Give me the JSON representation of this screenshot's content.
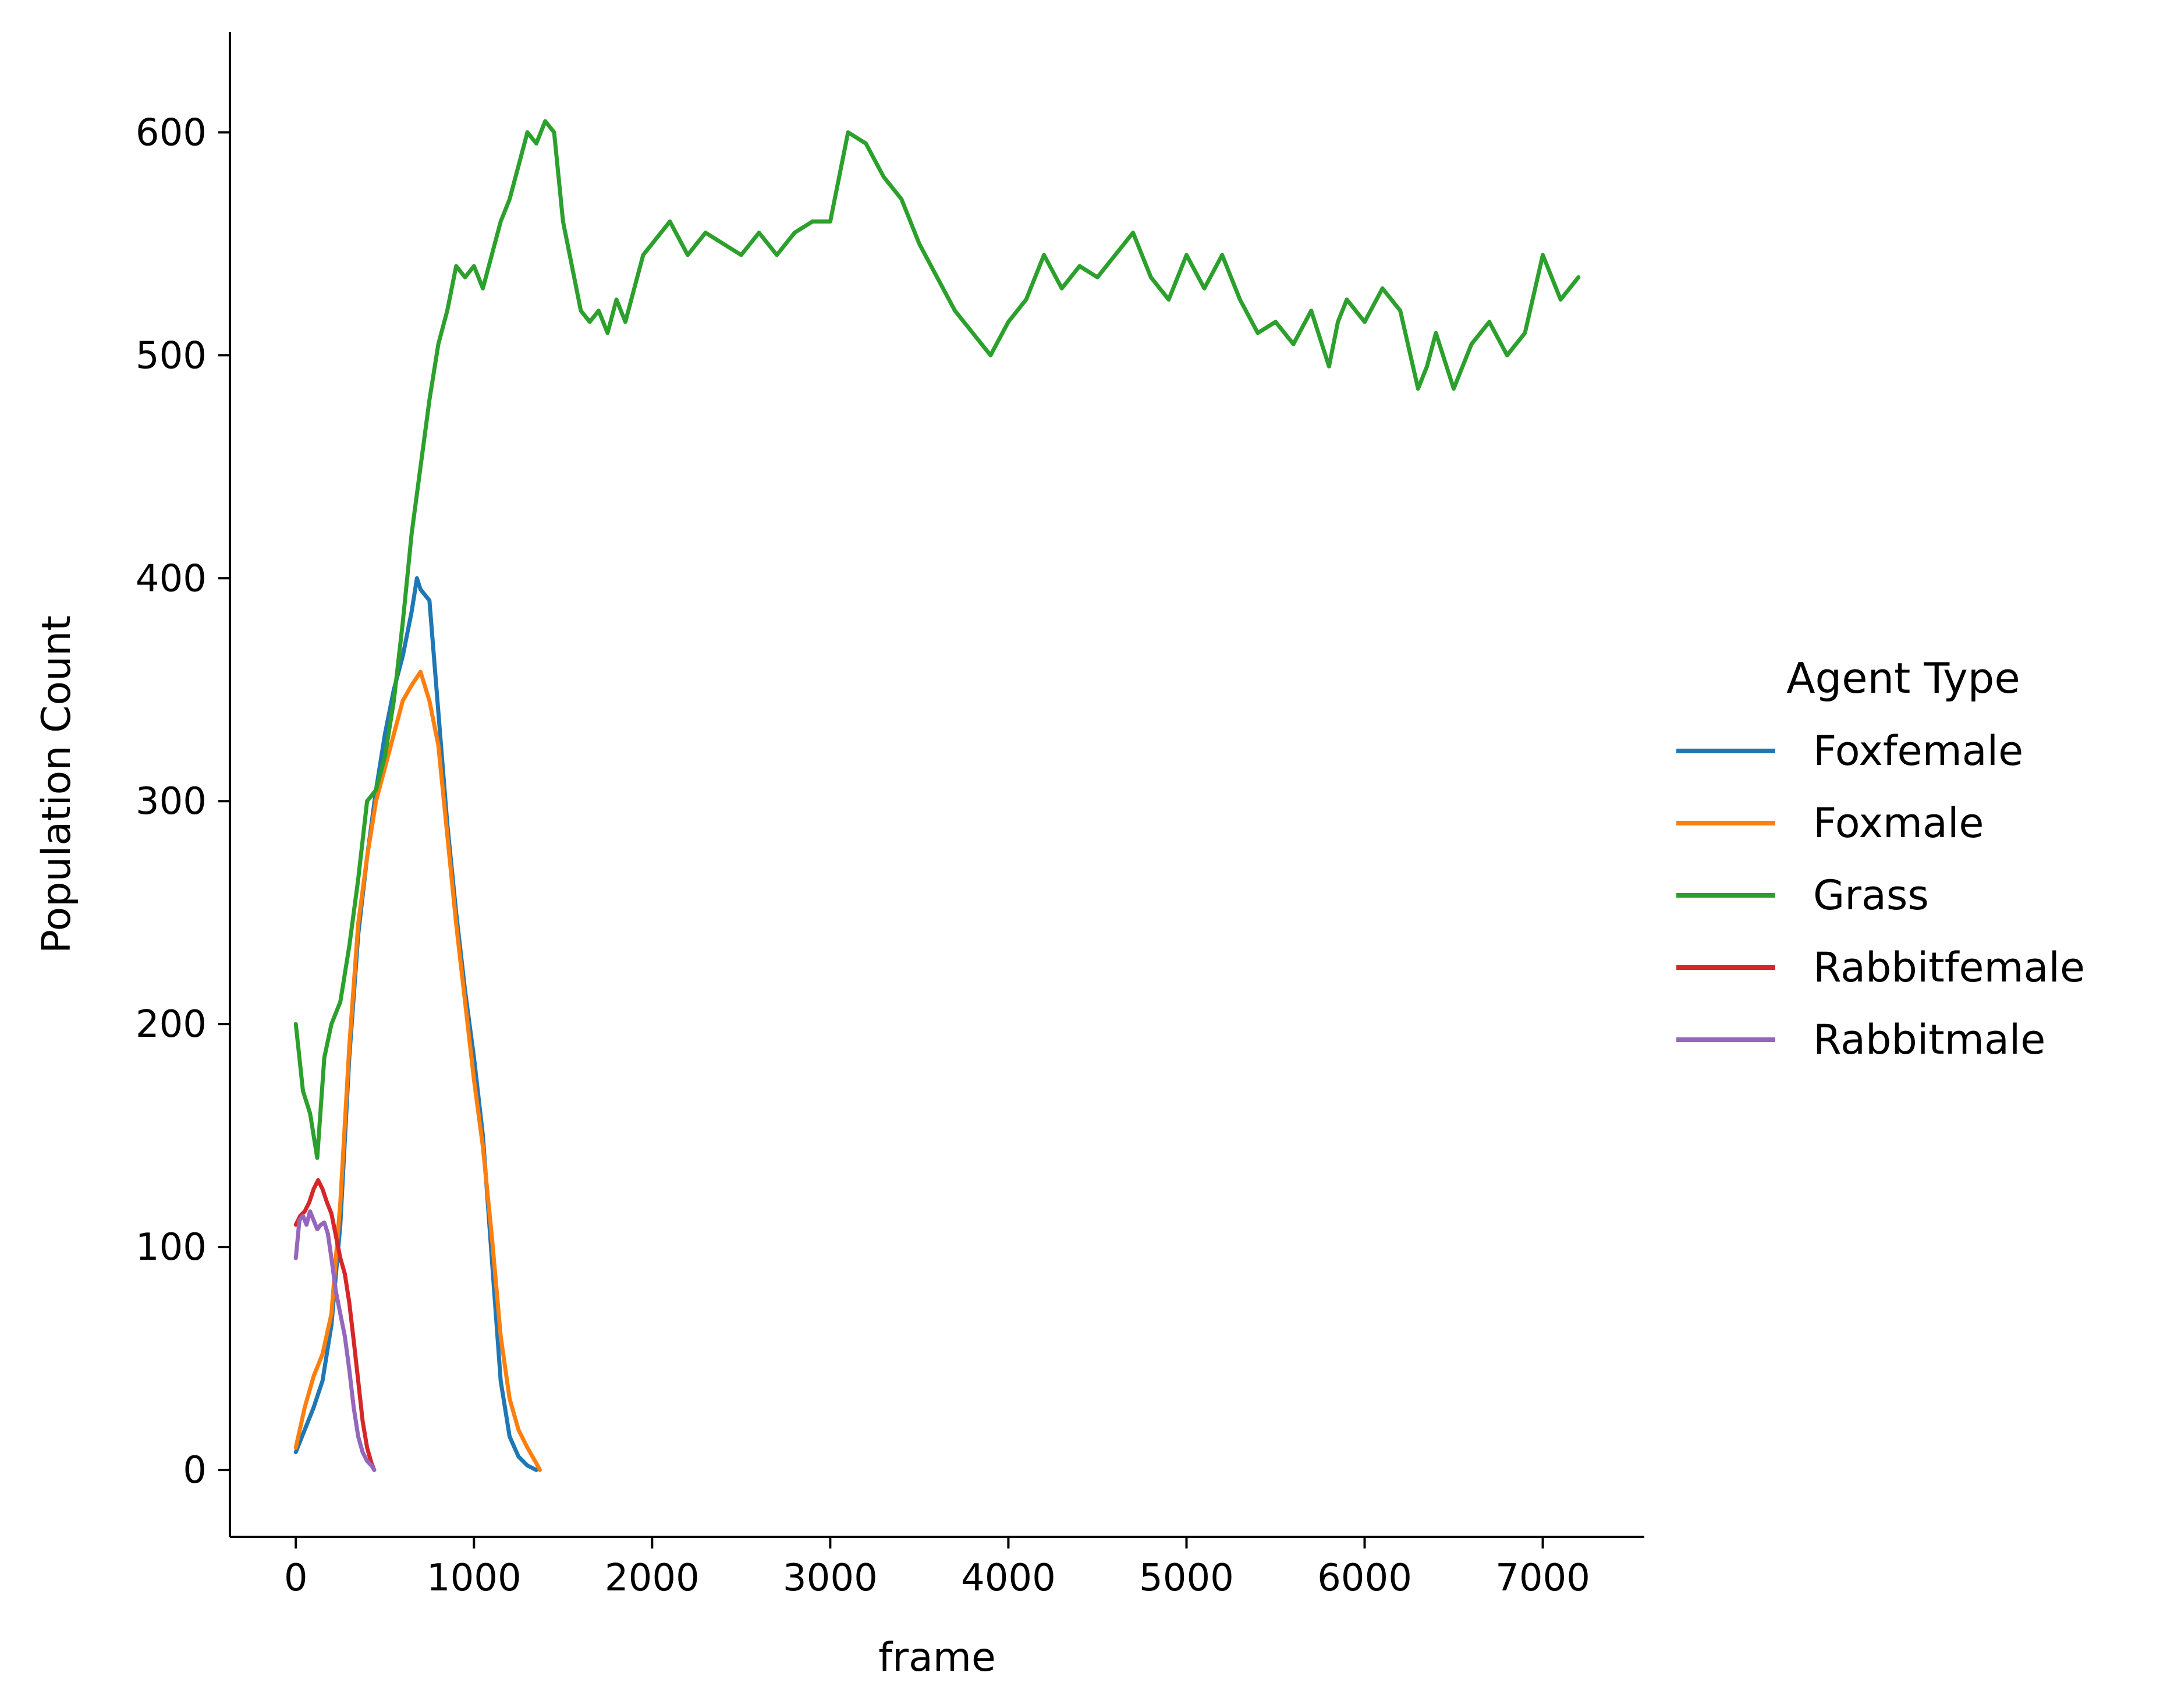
{
  "chart_data": {
    "type": "line",
    "xlabel": "frame",
    "ylabel": "Population Count",
    "xlim": [
      -370,
      7570
    ],
    "ylim": [
      -30,
      645
    ],
    "xticks": [
      0,
      1000,
      2000,
      3000,
      4000,
      5000,
      6000,
      7000
    ],
    "yticks": [
      0,
      100,
      200,
      300,
      400,
      500,
      600
    ],
    "grid": false,
    "legend": {
      "title": "Agent Type",
      "placement": "right"
    },
    "series": [
      {
        "name": "Foxfemale",
        "color": "#1f77b4",
        "x": [
          0,
          50,
          100,
          150,
          200,
          250,
          300,
          350,
          400,
          450,
          500,
          550,
          600,
          650,
          680,
          700,
          750,
          800,
          850,
          900,
          950,
          1000,
          1050,
          1100,
          1150,
          1200,
          1250,
          1300,
          1350
        ],
        "y": [
          8,
          18,
          28,
          40,
          65,
          110,
          185,
          240,
          275,
          305,
          330,
          350,
          365,
          385,
          400,
          395,
          390,
          340,
          290,
          250,
          215,
          185,
          150,
          95,
          40,
          15,
          6,
          2,
          0
        ]
      },
      {
        "name": "Foxmale",
        "color": "#ff7f0e",
        "x": [
          0,
          50,
          100,
          150,
          200,
          250,
          300,
          350,
          400,
          450,
          500,
          550,
          600,
          650,
          700,
          750,
          800,
          850,
          900,
          950,
          1000,
          1050,
          1100,
          1150,
          1200,
          1250,
          1300,
          1350,
          1370
        ],
        "y": [
          10,
          28,
          42,
          52,
          70,
          120,
          190,
          245,
          275,
          300,
          315,
          330,
          345,
          352,
          358,
          345,
          325,
          285,
          245,
          210,
          175,
          145,
          105,
          60,
          32,
          18,
          10,
          3,
          0
        ]
      },
      {
        "name": "Grass",
        "color": "#2ca02c",
        "x": [
          0,
          40,
          80,
          120,
          160,
          200,
          250,
          300,
          350,
          400,
          450,
          500,
          550,
          600,
          650,
          700,
          750,
          800,
          850,
          900,
          950,
          1000,
          1050,
          1100,
          1150,
          1200,
          1250,
          1300,
          1350,
          1400,
          1450,
          1500,
          1550,
          1600,
          1650,
          1700,
          1750,
          1800,
          1850,
          1900,
          1950,
          2000,
          2100,
          2200,
          2300,
          2400,
          2500,
          2600,
          2700,
          2800,
          2900,
          3000,
          3100,
          3200,
          3300,
          3400,
          3500,
          3600,
          3700,
          3800,
          3900,
          4000,
          4100,
          4200,
          4300,
          4400,
          4500,
          4600,
          4700,
          4800,
          4900,
          5000,
          5100,
          5200,
          5300,
          5400,
          5500,
          5600,
          5700,
          5800,
          5850,
          5900,
          6000,
          6100,
          6200,
          6300,
          6350,
          6400,
          6500,
          6600,
          6700,
          6800,
          6900,
          7000,
          7100,
          7200
        ],
        "y": [
          200,
          170,
          160,
          140,
          185,
          200,
          210,
          235,
          265,
          300,
          305,
          320,
          345,
          380,
          420,
          450,
          480,
          505,
          520,
          540,
          535,
          540,
          530,
          545,
          560,
          570,
          585,
          600,
          595,
          605,
          600,
          560,
          540,
          520,
          515,
          520,
          510,
          525,
          515,
          530,
          545,
          550,
          560,
          545,
          555,
          550,
          545,
          555,
          545,
          555,
          560,
          560,
          600,
          595,
          580,
          570,
          550,
          535,
          520,
          510,
          500,
          515,
          525,
          545,
          530,
          540,
          535,
          545,
          555,
          535,
          525,
          545,
          530,
          545,
          525,
          510,
          515,
          505,
          520,
          495,
          515,
          525,
          515,
          530,
          520,
          485,
          495,
          510,
          485,
          505,
          515,
          500,
          510,
          545,
          525,
          535
        ]
      },
      {
        "name": "Rabbitfemale",
        "color": "#d62728",
        "x": [
          0,
          25,
          50,
          75,
          100,
          125,
          150,
          175,
          200,
          225,
          250,
          275,
          300,
          325,
          350,
          375,
          400,
          425,
          440
        ],
        "y": [
          110,
          114,
          116,
          120,
          126,
          130,
          126,
          120,
          115,
          105,
          95,
          88,
          75,
          58,
          40,
          22,
          10,
          3,
          0
        ]
      },
      {
        "name": "Rabbitmale",
        "color": "#9467bd",
        "x": [
          0,
          20,
          40,
          60,
          80,
          100,
          120,
          140,
          160,
          180,
          200,
          225,
          250,
          275,
          300,
          325,
          350,
          375,
          400,
          425,
          440
        ],
        "y": [
          95,
          112,
          114,
          110,
          116,
          112,
          108,
          110,
          111,
          106,
          95,
          80,
          70,
          60,
          45,
          28,
          15,
          8,
          4,
          2,
          0
        ]
      }
    ]
  }
}
